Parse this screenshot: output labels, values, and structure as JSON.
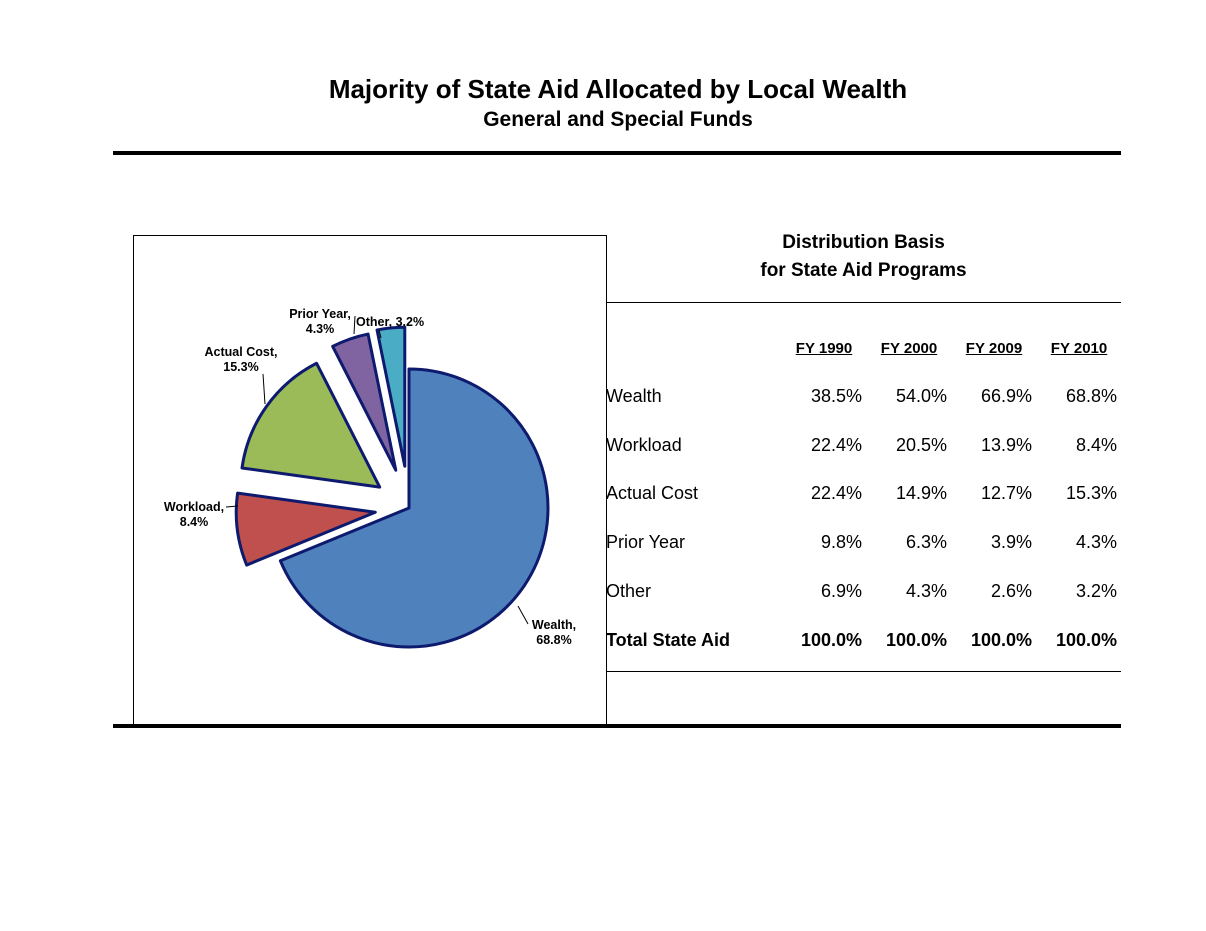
{
  "title": "Majority of State Aid Allocated by Local Wealth",
  "subtitle": "General and Special Funds",
  "table": {
    "title_line1": "Distribution Basis",
    "title_line2": "for State Aid Programs",
    "columns": [
      "FY 1990",
      "FY 2000",
      "FY 2009",
      "FY 2010"
    ],
    "rows": [
      {
        "label": "Wealth",
        "values": [
          "38.5%",
          "54.0%",
          "66.9%",
          "68.8%"
        ]
      },
      {
        "label": "Workload",
        "values": [
          "22.4%",
          "20.5%",
          "13.9%",
          "8.4%"
        ]
      },
      {
        "label": "Actual Cost",
        "values": [
          "22.4%",
          "14.9%",
          "12.7%",
          "15.3%"
        ]
      },
      {
        "label": "Prior Year",
        "values": [
          "9.8%",
          "6.3%",
          "3.9%",
          "4.3%"
        ]
      },
      {
        "label": "Other",
        "values": [
          "6.9%",
          "4.3%",
          "2.6%",
          "3.2%"
        ]
      }
    ],
    "total": {
      "label": "Total State Aid",
      "values": [
        "100.0%",
        "100.0%",
        "100.0%",
        "100.0%"
      ]
    }
  },
  "chart_data": {
    "type": "pie",
    "title": "",
    "series": [
      {
        "name": "",
        "values": [
          68.8,
          8.4,
          15.3,
          4.3,
          3.2
        ]
      }
    ],
    "categories": [
      "Wealth",
      "Workload",
      "Actual Cost",
      "Prior Year",
      "Other"
    ],
    "labels": [
      [
        "Wealth,",
        "68.8%"
      ],
      [
        "Workload,",
        "8.4%"
      ],
      [
        "Actual Cost,",
        "15.3%"
      ],
      [
        "Prior Year,",
        "4.3%"
      ],
      [
        "Other, 3.2%"
      ]
    ],
    "colors": [
      "#4F81BD",
      "#C0504D",
      "#9BBB59",
      "#8064A2",
      "#4BACC6"
    ],
    "stroke_color": "#0D1A6E",
    "exploded": true
  }
}
